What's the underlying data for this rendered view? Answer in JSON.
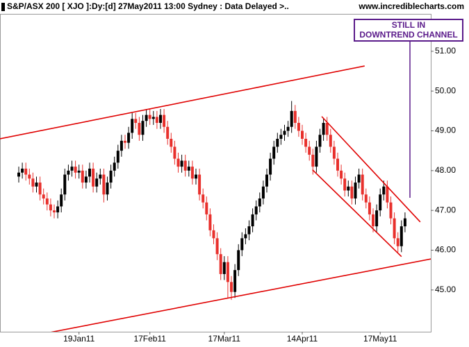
{
  "chart_data": {
    "type": "candlestick",
    "title": "S&P/ASX 200 [ XJO ]:Dy:[d]  27May2011 13:00 Sydney : Data Delayed >..",
    "source": "www.incrediblecharts.com",
    "annotation": [
      "STILL IN",
      "DOWNTREND CHANNEL"
    ],
    "categories": [
      null,
      null,
      null,
      null,
      null,
      null,
      null,
      null,
      null,
      null,
      null,
      null,
      null,
      null,
      null,
      null,
      null,
      "19Jan11",
      null,
      null,
      null,
      null,
      null,
      null,
      null,
      null,
      null,
      null,
      null,
      null,
      null,
      null,
      null,
      null,
      null,
      null,
      null,
      "17Feb11",
      null,
      null,
      null,
      null,
      null,
      null,
      null,
      null,
      null,
      null,
      null,
      null,
      null,
      null,
      null,
      null,
      null,
      null,
      null,
      null,
      "17Mar11",
      null,
      null,
      null,
      null,
      null,
      null,
      null,
      null,
      null,
      null,
      null,
      null,
      null,
      null,
      null,
      null,
      null,
      null,
      null,
      null,
      null,
      "14Apr11",
      null,
      null,
      null,
      null,
      null,
      null,
      null,
      null,
      null,
      null,
      null,
      null,
      null,
      null,
      null,
      null,
      null,
      null,
      null,
      null,
      null,
      "17May11",
      null,
      null,
      null,
      null,
      null,
      null,
      null
    ],
    "open": [
      47.85,
      47.95,
      48.05,
      47.9,
      47.8,
      47.6,
      47.7,
      47.4,
      47.3,
      47.15,
      47.0,
      46.95,
      47.1,
      47.4,
      47.9,
      48.0,
      48.1,
      47.95,
      48.0,
      47.7,
      47.85,
      48.05,
      47.6,
      47.8,
      47.9,
      47.4,
      47.7,
      48.0,
      48.2,
      48.5,
      48.75,
      48.7,
      48.95,
      49.3,
      49.2,
      48.9,
      49.25,
      49.4,
      49.3,
      49.35,
      49.2,
      49.4,
      49.1,
      48.8,
      48.6,
      48.3,
      48.1,
      48.25,
      48.0,
      48.1,
      47.8,
      47.9,
      47.4,
      47.2,
      46.9,
      46.5,
      46.3,
      45.9,
      45.4,
      45.7,
      45.2,
      44.95,
      45.5,
      46.0,
      46.3,
      46.4,
      46.6,
      46.9,
      47.1,
      47.3,
      47.6,
      47.9,
      48.3,
      48.6,
      48.8,
      48.9,
      49.0,
      49.1,
      49.5,
      49.2,
      49.0,
      48.8,
      48.6,
      48.4,
      48.1,
      48.6,
      48.9,
      49.2,
      48.9,
      48.6,
      48.3,
      48.0,
      47.8,
      47.5,
      47.6,
      47.3,
      47.7,
      47.9,
      47.4,
      47.2,
      46.9,
      46.6,
      47.0,
      47.4,
      47.6,
      47.2,
      46.8,
      46.3,
      46.1,
      46.6
    ],
    "high": [
      48.1,
      48.2,
      48.2,
      48.05,
      47.95,
      47.85,
      47.85,
      47.55,
      47.45,
      47.3,
      47.15,
      47.25,
      47.55,
      48.05,
      48.15,
      48.25,
      48.25,
      48.15,
      48.15,
      48.0,
      48.2,
      48.2,
      47.95,
      48.05,
      48.05,
      47.85,
      48.15,
      48.35,
      48.65,
      48.9,
      48.9,
      49.1,
      49.45,
      49.45,
      49.35,
      49.4,
      49.55,
      49.55,
      49.5,
      49.5,
      49.55,
      49.55,
      49.25,
      48.95,
      48.75,
      48.45,
      48.4,
      48.4,
      48.25,
      48.25,
      48.05,
      48.05,
      47.55,
      47.35,
      47.05,
      46.65,
      46.45,
      46.05,
      45.85,
      45.85,
      45.35,
      45.65,
      46.15,
      46.45,
      46.55,
      46.75,
      47.05,
      47.25,
      47.45,
      47.75,
      48.05,
      48.45,
      48.75,
      48.95,
      49.05,
      49.15,
      49.25,
      49.75,
      49.65,
      49.35,
      49.15,
      48.95,
      48.75,
      48.55,
      48.75,
      49.05,
      49.3,
      49.35,
      49.05,
      48.75,
      48.45,
      48.15,
      47.95,
      47.75,
      47.75,
      47.85,
      48.05,
      48.05,
      47.55,
      47.35,
      47.05,
      47.15,
      47.55,
      47.75,
      47.75,
      47.35,
      46.95,
      46.45,
      46.75,
      46.95
    ],
    "low": [
      47.7,
      47.8,
      47.75,
      47.65,
      47.45,
      47.45,
      47.25,
      47.15,
      47.0,
      46.85,
      46.8,
      46.8,
      46.95,
      47.25,
      47.75,
      47.85,
      47.8,
      47.8,
      47.55,
      47.55,
      47.7,
      47.45,
      47.45,
      47.65,
      47.2,
      47.25,
      47.55,
      47.85,
      48.05,
      48.35,
      48.55,
      48.55,
      48.8,
      49.05,
      48.75,
      48.75,
      49.1,
      49.15,
      49.15,
      49.05,
      49.05,
      48.95,
      48.65,
      48.45,
      48.15,
      47.95,
      47.95,
      47.85,
      47.85,
      47.65,
      47.65,
      47.25,
      47.05,
      46.75,
      46.35,
      46.15,
      45.75,
      45.25,
      45.25,
      44.8,
      44.75,
      44.8,
      45.35,
      45.85,
      46.15,
      46.25,
      46.45,
      46.75,
      46.95,
      47.15,
      47.45,
      47.75,
      48.15,
      48.45,
      48.65,
      48.75,
      48.85,
      48.95,
      49.05,
      48.85,
      48.65,
      48.45,
      48.25,
      47.9,
      47.95,
      48.45,
      48.75,
      48.75,
      48.45,
      48.15,
      47.85,
      47.65,
      47.35,
      47.35,
      47.15,
      47.15,
      47.55,
      47.25,
      47.05,
      46.75,
      46.45,
      46.45,
      46.85,
      47.25,
      47.05,
      46.65,
      46.15,
      45.95,
      45.95,
      46.45
    ],
    "close": [
      47.95,
      48.05,
      47.9,
      47.8,
      47.6,
      47.7,
      47.4,
      47.3,
      47.15,
      47.0,
      46.95,
      47.1,
      47.4,
      47.9,
      48.0,
      48.1,
      47.95,
      48.0,
      47.7,
      47.85,
      48.05,
      47.6,
      47.8,
      47.9,
      47.4,
      47.7,
      48.0,
      48.2,
      48.5,
      48.75,
      48.7,
      48.95,
      49.3,
      49.2,
      48.9,
      49.25,
      49.4,
      49.3,
      49.35,
      49.2,
      49.4,
      49.1,
      48.8,
      48.6,
      48.3,
      48.1,
      48.25,
      48.0,
      48.1,
      47.8,
      47.9,
      47.4,
      47.2,
      46.9,
      46.5,
      46.3,
      45.9,
      45.4,
      45.7,
      45.2,
      44.95,
      45.5,
      46.0,
      46.3,
      46.4,
      46.6,
      46.9,
      47.1,
      47.3,
      47.6,
      47.9,
      48.3,
      48.6,
      48.8,
      48.9,
      49.0,
      49.1,
      49.5,
      49.2,
      49.0,
      48.8,
      48.6,
      48.4,
      48.1,
      48.6,
      48.9,
      49.2,
      48.9,
      48.6,
      48.3,
      48.0,
      47.8,
      47.5,
      47.6,
      47.3,
      47.7,
      47.9,
      47.4,
      47.2,
      46.9,
      46.6,
      47.0,
      47.4,
      47.6,
      47.2,
      46.8,
      46.3,
      46.1,
      46.6,
      46.8
    ],
    "up_color": "#000000",
    "down_color": "#e8302c",
    "trendlines": [
      {
        "x": [
          -5.3,
          97.6
        ],
        "y": [
          48.8,
          50.63
        ]
      },
      {
        "x": [
          -5.3,
          116.3
        ],
        "y": [
          43.69,
          45.78
        ]
      },
      {
        "x": [
          85.5,
          113.3
        ],
        "y": [
          49.36,
          46.71
        ]
      },
      {
        "x": [
          82.9,
          108
        ],
        "y": [
          48.02,
          45.84
        ]
      }
    ],
    "trendline_color": "#e00000",
    "annotation_color": "#5a1a8a",
    "ylim": [
      43.95,
      51.94
    ],
    "yticks": [
      {
        "value": 45,
        "label": "45.00"
      },
      {
        "value": 46,
        "label": "46.00"
      },
      {
        "value": 47,
        "label": "47.00"
      },
      {
        "value": 48,
        "label": "48.00"
      },
      {
        "value": 49,
        "label": "49.00"
      },
      {
        "value": 50,
        "label": "50.00"
      },
      {
        "value": 51,
        "label": "51.00"
      }
    ],
    "grid": false
  }
}
